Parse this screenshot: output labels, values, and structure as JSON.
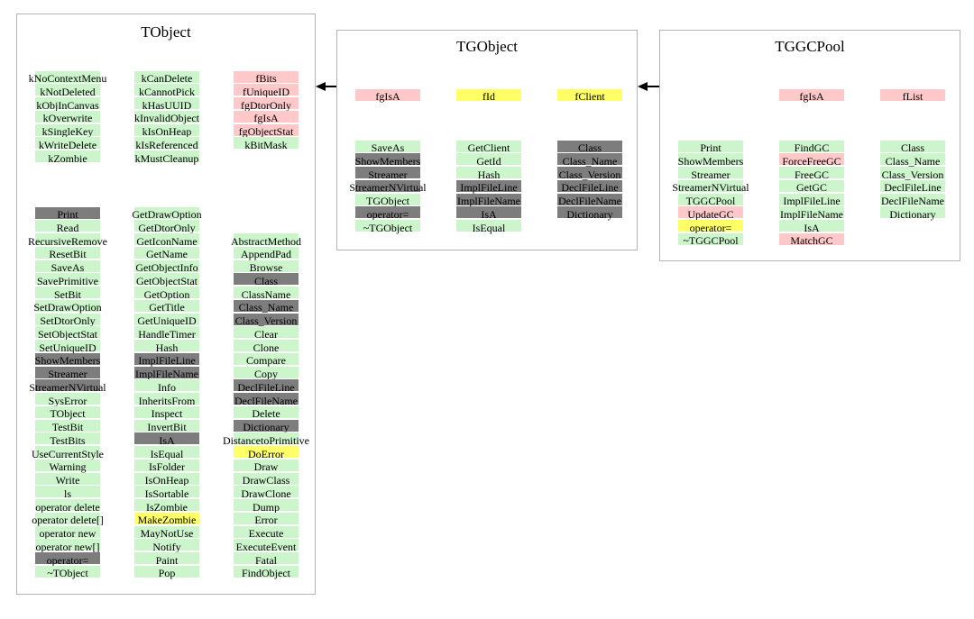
{
  "colors": {
    "green": "#ccf5cc",
    "pink": "#ffc9c9",
    "yellow": "#ffff66",
    "gray": "#7d7d7d",
    "box_border": "#b4b4b4",
    "arrow": "#000000"
  },
  "arrows": [
    {
      "name": "arrow-tgobject-to-tobject"
    },
    {
      "name": "arrow-tggcpool-to-tgobject"
    }
  ],
  "classes": [
    {
      "name": "TObject",
      "columns": [
        {
          "fields": [
            {
              "t": "kNoContextMenu",
              "c": "green"
            },
            {
              "t": "kNotDeleted",
              "c": "green"
            },
            {
              "t": "kObjInCanvas",
              "c": "green"
            },
            {
              "t": "kOverwrite",
              "c": "green"
            },
            {
              "t": "kSingleKey",
              "c": "green"
            },
            {
              "t": "kWriteDelete",
              "c": "green"
            },
            {
              "t": "kZombie",
              "c": "green"
            }
          ],
          "methods": [
            {
              "t": "Print",
              "c": "gray"
            },
            {
              "t": "Read",
              "c": "green"
            },
            {
              "t": "RecursiveRemove",
              "c": "green"
            },
            {
              "t": "ResetBit",
              "c": "green"
            },
            {
              "t": "SaveAs",
              "c": "green"
            },
            {
              "t": "SavePrimitive",
              "c": "green"
            },
            {
              "t": "SetBit",
              "c": "green"
            },
            {
              "t": "SetDrawOption",
              "c": "green"
            },
            {
              "t": "SetDtorOnly",
              "c": "green"
            },
            {
              "t": "SetObjectStat",
              "c": "green"
            },
            {
              "t": "SetUniqueID",
              "c": "green"
            },
            {
              "t": "ShowMembers",
              "c": "gray"
            },
            {
              "t": "Streamer",
              "c": "gray"
            },
            {
              "t": "StreamerNVirtual",
              "c": "gray"
            },
            {
              "t": "SysError",
              "c": "green"
            },
            {
              "t": "TObject",
              "c": "green"
            },
            {
              "t": "TestBit",
              "c": "green"
            },
            {
              "t": "TestBits",
              "c": "green"
            },
            {
              "t": "UseCurrentStyle",
              "c": "green"
            },
            {
              "t": "Warning",
              "c": "green"
            },
            {
              "t": "Write",
              "c": "green"
            },
            {
              "t": "ls",
              "c": "green"
            },
            {
              "t": "operator delete",
              "c": "green"
            },
            {
              "t": "operator delete[]",
              "c": "green"
            },
            {
              "t": "operator new",
              "c": "green"
            },
            {
              "t": "operator new[]",
              "c": "green"
            },
            {
              "t": "operator=",
              "c": "gray"
            },
            {
              "t": "~TObject",
              "c": "green"
            }
          ]
        },
        {
          "fields": [
            {
              "t": "kCanDelete",
              "c": "green"
            },
            {
              "t": "kCannotPick",
              "c": "green"
            },
            {
              "t": "kHasUUID",
              "c": "green"
            },
            {
              "t": "kInvalidObject",
              "c": "green"
            },
            {
              "t": "kIsOnHeap",
              "c": "green"
            },
            {
              "t": "kIsReferenced",
              "c": "green"
            },
            {
              "t": "kMustCleanup",
              "c": "green"
            }
          ],
          "methods": [
            {
              "t": "GetDrawOption",
              "c": "green"
            },
            {
              "t": "GetDtorOnly",
              "c": "green"
            },
            {
              "t": "GetIconName",
              "c": "green"
            },
            {
              "t": "GetName",
              "c": "green"
            },
            {
              "t": "GetObjectInfo",
              "c": "green"
            },
            {
              "t": "GetObjectStat",
              "c": "green"
            },
            {
              "t": "GetOption",
              "c": "green"
            },
            {
              "t": "GetTitle",
              "c": "green"
            },
            {
              "t": "GetUniqueID",
              "c": "green"
            },
            {
              "t": "HandleTimer",
              "c": "green"
            },
            {
              "t": "Hash",
              "c": "green"
            },
            {
              "t": "ImplFileLine",
              "c": "gray"
            },
            {
              "t": "ImplFileName",
              "c": "gray"
            },
            {
              "t": "Info",
              "c": "green"
            },
            {
              "t": "InheritsFrom",
              "c": "green"
            },
            {
              "t": "Inspect",
              "c": "green"
            },
            {
              "t": "InvertBit",
              "c": "green"
            },
            {
              "t": "IsA",
              "c": "gray"
            },
            {
              "t": "IsEqual",
              "c": "green"
            },
            {
              "t": "IsFolder",
              "c": "green"
            },
            {
              "t": "IsOnHeap",
              "c": "green"
            },
            {
              "t": "IsSortable",
              "c": "green"
            },
            {
              "t": "IsZombie",
              "c": "green"
            },
            {
              "t": "MakeZombie",
              "c": "yellow"
            },
            {
              "t": "MayNotUse",
              "c": "green"
            },
            {
              "t": "Notify",
              "c": "green"
            },
            {
              "t": "Paint",
              "c": "green"
            },
            {
              "t": "Pop",
              "c": "green"
            }
          ]
        },
        {
          "fields": [
            {
              "t": "fBits",
              "c": "pink"
            },
            {
              "t": "fUniqueID",
              "c": "pink"
            },
            {
              "t": "fgDtorOnly",
              "c": "pink"
            },
            {
              "t": "fgIsA",
              "c": "pink"
            },
            {
              "t": "fgObjectStat",
              "c": "pink"
            },
            {
              "t": "kBitMask",
              "c": "green"
            }
          ],
          "methods": [
            null,
            null,
            {
              "t": "AbstractMethod",
              "c": "green"
            },
            {
              "t": "AppendPad",
              "c": "green"
            },
            {
              "t": "Browse",
              "c": "green"
            },
            {
              "t": "Class",
              "c": "gray"
            },
            {
              "t": "ClassName",
              "c": "green"
            },
            {
              "t": "Class_Name",
              "c": "gray"
            },
            {
              "t": "Class_Version",
              "c": "gray"
            },
            {
              "t": "Clear",
              "c": "green"
            },
            {
              "t": "Clone",
              "c": "green"
            },
            {
              "t": "Compare",
              "c": "green"
            },
            {
              "t": "Copy",
              "c": "green"
            },
            {
              "t": "DeclFileLine",
              "c": "gray"
            },
            {
              "t": "DeclFileName",
              "c": "gray"
            },
            {
              "t": "Delete",
              "c": "green"
            },
            {
              "t": "Dictionary",
              "c": "gray"
            },
            {
              "t": "DistancetoPrimitive",
              "c": "green"
            },
            {
              "t": "DoError",
              "c": "yellow"
            },
            {
              "t": "Draw",
              "c": "green"
            },
            {
              "t": "DrawClass",
              "c": "green"
            },
            {
              "t": "DrawClone",
              "c": "green"
            },
            {
              "t": "Dump",
              "c": "green"
            },
            {
              "t": "Error",
              "c": "green"
            },
            {
              "t": "Execute",
              "c": "green"
            },
            {
              "t": "ExecuteEvent",
              "c": "green"
            },
            {
              "t": "Fatal",
              "c": "green"
            },
            {
              "t": "FindObject",
              "c": "green"
            }
          ]
        }
      ]
    },
    {
      "name": "TGObject",
      "columns": [
        {
          "fields": [
            {
              "t": "fgIsA",
              "c": "pink"
            }
          ],
          "methods": [
            {
              "t": "SaveAs",
              "c": "green"
            },
            {
              "t": "ShowMembers",
              "c": "gray"
            },
            {
              "t": "Streamer",
              "c": "gray"
            },
            {
              "t": "StreamerNVirtual",
              "c": "gray"
            },
            {
              "t": "TGObject",
              "c": "green"
            },
            {
              "t": "operator=",
              "c": "gray"
            },
            {
              "t": "~TGObject",
              "c": "green"
            }
          ]
        },
        {
          "fields": [
            {
              "t": "fId",
              "c": "yellow"
            }
          ],
          "methods": [
            {
              "t": "GetClient",
              "c": "green"
            },
            {
              "t": "GetId",
              "c": "green"
            },
            {
              "t": "Hash",
              "c": "green"
            },
            {
              "t": "ImplFileLine",
              "c": "gray"
            },
            {
              "t": "ImplFileName",
              "c": "gray"
            },
            {
              "t": "IsA",
              "c": "gray"
            },
            {
              "t": "IsEqual",
              "c": "green"
            }
          ]
        },
        {
          "fields": [
            {
              "t": "fClient",
              "c": "yellow"
            }
          ],
          "methods": [
            {
              "t": "Class",
              "c": "gray"
            },
            {
              "t": "Class_Name",
              "c": "gray"
            },
            {
              "t": "Class_Version",
              "c": "gray"
            },
            {
              "t": "DeclFileLine",
              "c": "gray"
            },
            {
              "t": "DeclFileName",
              "c": "gray"
            },
            {
              "t": "Dictionary",
              "c": "gray"
            }
          ]
        }
      ]
    },
    {
      "name": "TGGCPool",
      "columns": [
        {
          "fields": [],
          "methods": [
            {
              "t": "Print",
              "c": "green"
            },
            {
              "t": "ShowMembers",
              "c": "green"
            },
            {
              "t": "Streamer",
              "c": "green"
            },
            {
              "t": "StreamerNVirtual",
              "c": "green"
            },
            {
              "t": "TGGCPool",
              "c": "green"
            },
            {
              "t": "UpdateGC",
              "c": "pink"
            },
            {
              "t": "operator=",
              "c": "yellow"
            },
            {
              "t": "~TGGCPool",
              "c": "green"
            }
          ]
        },
        {
          "fields": [
            {
              "t": "fgIsA",
              "c": "pink"
            }
          ],
          "methods": [
            {
              "t": "FindGC",
              "c": "green"
            },
            {
              "t": "ForceFreeGC",
              "c": "pink"
            },
            {
              "t": "FreeGC",
              "c": "green"
            },
            {
              "t": "GetGC",
              "c": "green"
            },
            {
              "t": "ImplFileLine",
              "c": "green"
            },
            {
              "t": "ImplFileName",
              "c": "green"
            },
            {
              "t": "IsA",
              "c": "green"
            },
            {
              "t": "MatchGC",
              "c": "pink"
            }
          ]
        },
        {
          "fields": [
            {
              "t": "fList",
              "c": "pink"
            }
          ],
          "methods": [
            {
              "t": "Class",
              "c": "green"
            },
            {
              "t": "Class_Name",
              "c": "green"
            },
            {
              "t": "Class_Version",
              "c": "green"
            },
            {
              "t": "DeclFileLine",
              "c": "green"
            },
            {
              "t": "DeclFileName",
              "c": "green"
            },
            {
              "t": "Dictionary",
              "c": "green"
            }
          ]
        }
      ]
    }
  ]
}
